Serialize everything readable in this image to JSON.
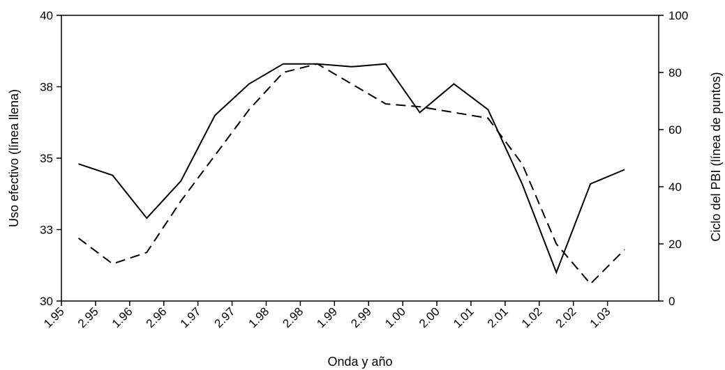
{
  "chart_data": {
    "type": "line",
    "xlabel": "Onda y año",
    "ylabel_left": "Uso efectivo (línea llena)",
    "ylabel_right": "Ciclo del PBI (línea de puntos)",
    "categories": [
      "1.95",
      "2.95",
      "1.96",
      "2.96",
      "1.97",
      "2.97",
      "1.98",
      "2.98",
      "1.99",
      "2.99",
      "1.00",
      "2.00",
      "1.01",
      "2.01",
      "1.02",
      "2.02",
      "1.03"
    ],
    "y_left": {
      "min": 30,
      "max": 40,
      "ticks": [
        30,
        33,
        35,
        38,
        40
      ],
      "tick_values": [
        30,
        32.5,
        35,
        37.5,
        40
      ]
    },
    "y_right": {
      "min": 0,
      "max": 100,
      "ticks": [
        0,
        20,
        40,
        60,
        80,
        100
      ]
    },
    "series": [
      {
        "axis": "left",
        "style": "solid",
        "values": [
          34.8,
          34.4,
          32.9,
          34.2,
          36.5,
          37.6,
          38.3,
          38.3,
          38.2,
          38.3,
          36.6,
          37.6,
          36.7,
          34.1,
          31.0,
          34.1,
          34.6
        ]
      },
      {
        "axis": "right",
        "style": "dashed",
        "values": [
          22,
          13,
          17,
          35,
          51,
          67,
          80,
          83,
          76,
          69,
          68,
          66,
          64,
          48,
          20,
          6,
          18
        ]
      }
    ],
    "grid": false,
    "legend": "none"
  }
}
